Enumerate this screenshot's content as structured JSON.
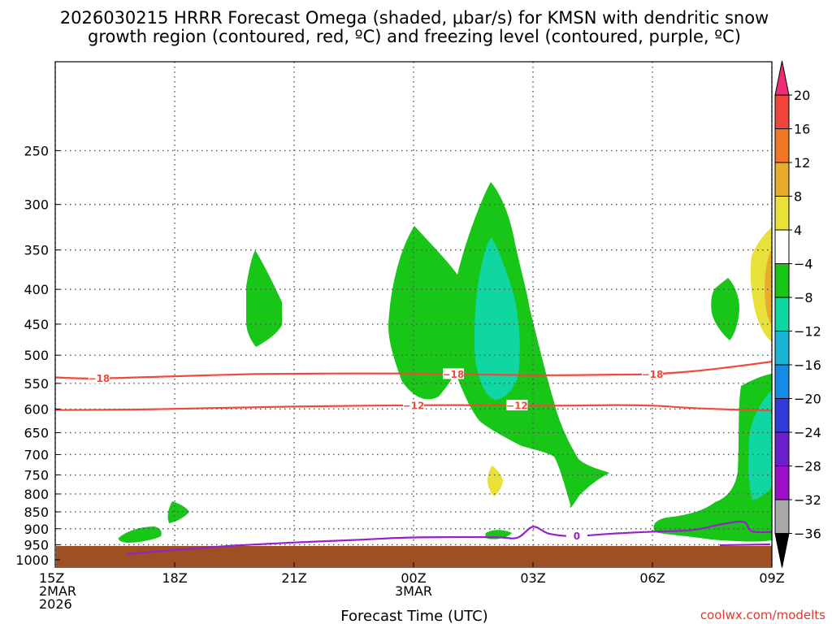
{
  "title": {
    "line1": "2026030215 HRRR Forecast Omega (shaded, μbar/s) for KMSN with dendritic snow",
    "line2": "growth region (contoured, red, ºC) and freezing level (contoured, purple, ºC)"
  },
  "xlabel": "Forecast Time (UTC)",
  "credit": "coolwx.com/modelts",
  "colors": {
    "grid": "#555555",
    "ground": "#9e4f24",
    "dgz": "#f04a3c",
    "freezing": "#9b1fc8"
  },
  "chart_data": {
    "type": "time-height cross section (shaded + contour)",
    "x_range_hours": [
      0,
      18
    ],
    "x_ticks": [
      {
        "hour": 0,
        "lines": [
          "15Z",
          "2MAR",
          "2026"
        ]
      },
      {
        "hour": 3,
        "lines": [
          "18Z"
        ]
      },
      {
        "hour": 6,
        "lines": [
          "21Z"
        ]
      },
      {
        "hour": 9,
        "lines": [
          "00Z",
          "3MAR"
        ]
      },
      {
        "hour": 12,
        "lines": [
          "03Z"
        ]
      },
      {
        "hour": 15,
        "lines": [
          "06Z"
        ]
      },
      {
        "hour": 18,
        "lines": [
          "09Z"
        ]
      }
    ],
    "y_axis": {
      "unit": "hPa",
      "scale": "log",
      "range": [
        1025,
        185
      ]
    },
    "y_ticks": [
      250,
      300,
      350,
      400,
      450,
      500,
      550,
      600,
      650,
      700,
      750,
      800,
      850,
      900,
      950,
      1000
    ],
    "colorbar": {
      "labels": [
        "20",
        "16",
        "12",
        "8",
        "4",
        "−4",
        "−8",
        "−12",
        "−16",
        "−20",
        "−24",
        "−28",
        "−32",
        "−36"
      ],
      "colors": [
        "#ee2d76",
        "#f0443d",
        "#f07726",
        "#e8ad2c",
        "#e8e13a",
        "#ffffff",
        "#17c617",
        "#10d6a2",
        "#1bb4d7",
        "#178ae6",
        "#2f3cd8",
        "#6a20cc",
        "#9b10c6",
        "#a8a8a8",
        "#000000"
      ]
    },
    "dgz_contours": [
      {
        "label": "−18",
        "label_positions_hours": [
          1.1,
          10.0,
          15.0
        ],
        "points": [
          [
            0,
            539
          ],
          [
            1,
            541
          ],
          [
            3,
            537
          ],
          [
            5,
            533
          ],
          [
            7,
            532
          ],
          [
            9,
            532
          ],
          [
            12,
            535
          ],
          [
            14,
            534
          ],
          [
            15,
            533
          ],
          [
            16,
            528
          ],
          [
            17,
            520
          ],
          [
            18,
            511
          ]
        ]
      },
      {
        "label": "−12",
        "label_positions_hours": [
          9.0,
          11.6
        ],
        "points": [
          [
            0,
            602
          ],
          [
            2,
            601
          ],
          [
            4,
            598
          ],
          [
            6,
            595
          ],
          [
            8,
            593
          ],
          [
            10,
            592
          ],
          [
            12,
            593
          ],
          [
            13,
            593
          ],
          [
            14,
            592
          ],
          [
            15,
            593
          ],
          [
            16,
            598
          ],
          [
            17,
            601
          ],
          [
            18,
            603
          ]
        ]
      }
    ],
    "freezing_contour": {
      "label": "0",
      "label_position_hours": 13.1,
      "points": [
        [
          1.8,
          981
        ],
        [
          3,
          967
        ],
        [
          4.5,
          953
        ],
        [
          6,
          943
        ],
        [
          7.5,
          935
        ],
        [
          9,
          927
        ],
        [
          11,
          926
        ],
        [
          11.6,
          928
        ],
        [
          12,
          894
        ],
        [
          12.4,
          915
        ],
        [
          13,
          923
        ],
        [
          14,
          915
        ],
        [
          15,
          909
        ],
        [
          16,
          904
        ],
        [
          16.8,
          885
        ],
        [
          17.3,
          880
        ],
        [
          17.5,
          908
        ],
        [
          18,
          910
        ]
      ]
    },
    "omega_shaded": [
      {
        "category": "−4 to −8",
        "approx_region": "18–20Z, 380–520 hPa"
      },
      {
        "category": "−4 to −8",
        "approx_region": "23Z–05Z, 310–800 hPa"
      },
      {
        "category": "−8 to −12",
        "approx_region": "01–03Z, 370–600 hPa"
      },
      {
        "category": "4 to 8",
        "approx_region": "02Z, 780–820 hPa"
      },
      {
        "category": "−4 to −8",
        "approx_region": "16–18Z, 920–960 hPa"
      },
      {
        "category": "−4 to −8",
        "approx_region": "07–09Z, 570–960 hPa"
      },
      {
        "category": "4 to 8",
        "approx_region": "09Z, 360–500 hPa"
      }
    ]
  }
}
